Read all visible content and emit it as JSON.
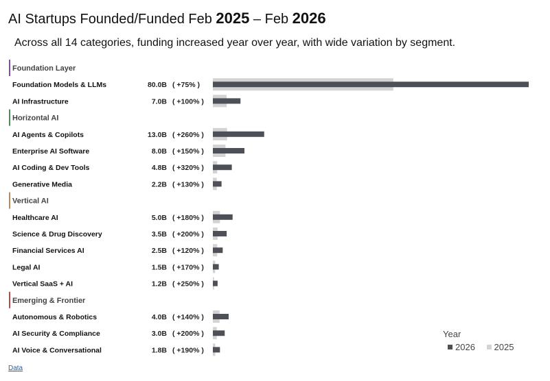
{
  "title_prefix": "AI Startups Founded/Funded Feb ",
  "title_year1": "2025",
  "title_mid": " – Feb ",
  "title_year2": "2026",
  "subtitle": "Across all 14 categories, funding increased year over year, with wide variation by segment.",
  "legend": {
    "title": "Year",
    "items": [
      {
        "label": "2026",
        "color": "#4d5157"
      },
      {
        "label": "2025",
        "color": "#d3d3d3"
      }
    ]
  },
  "data_link": "Data",
  "colors": {
    "bar_2026": "#4d5157",
    "bar_2025": "#d3d3d3"
  },
  "chart_data": {
    "type": "bar",
    "orientation": "horizontal",
    "unit": "B",
    "xlim": [
      0,
      80
    ],
    "groups": [
      {
        "name": "Foundation Layer",
        "color": "#7b4fa6",
        "categories": [
          {
            "name": "Foundation Models & LLMs",
            "value_2026": 80.0,
            "value_2025": 45.7,
            "value_label": "80.0B",
            "change_label": "( +75% )"
          },
          {
            "name": "AI Infrastructure",
            "value_2026": 7.0,
            "value_2025": 3.5,
            "value_label": "7.0B",
            "change_label": "( +100% )"
          }
        ]
      },
      {
        "name": "Horizontal AI",
        "color": "#4a8a5c",
        "categories": [
          {
            "name": "AI Agents & Copilots",
            "value_2026": 13.0,
            "value_2025": 3.6,
            "value_label": "13.0B",
            "change_label": "( +260% )"
          },
          {
            "name": "Enterprise AI Software",
            "value_2026": 8.0,
            "value_2025": 3.2,
            "value_label": "8.0B",
            "change_label": "( +150% )"
          },
          {
            "name": "AI Coding & Dev Tools",
            "value_2026": 4.8,
            "value_2025": 1.1,
            "value_label": "4.8B",
            "change_label": "( +320% )"
          },
          {
            "name": "Generative Media",
            "value_2026": 2.2,
            "value_2025": 1.0,
            "value_label": "2.2B",
            "change_label": "( +130% )"
          }
        ]
      },
      {
        "name": "Vertical AI",
        "color": "#b8875a",
        "categories": [
          {
            "name": "Healthcare AI",
            "value_2026": 5.0,
            "value_2025": 1.8,
            "value_label": "5.0B",
            "change_label": "( +180% )"
          },
          {
            "name": "Science & Drug Discovery",
            "value_2026": 3.5,
            "value_2025": 1.2,
            "value_label": "3.5B",
            "change_label": "( +200% )"
          },
          {
            "name": "Financial Services AI",
            "value_2026": 2.5,
            "value_2025": 1.1,
            "value_label": "2.5B",
            "change_label": "( +120% )"
          },
          {
            "name": "Legal AI",
            "value_2026": 1.5,
            "value_2025": 0.6,
            "value_label": "1.5B",
            "change_label": "( +170% )"
          },
          {
            "name": "Vertical SaaS + AI",
            "value_2026": 1.2,
            "value_2025": 0.3,
            "value_label": "1.2B",
            "change_label": "( +250% )"
          }
        ]
      },
      {
        "name": "Emerging & Frontier",
        "color": "#b44a45",
        "categories": [
          {
            "name": "Autonomous & Robotics",
            "value_2026": 4.0,
            "value_2025": 1.7,
            "value_label": "4.0B",
            "change_label": "( +140% )"
          },
          {
            "name": "AI Security & Compliance",
            "value_2026": 3.0,
            "value_2025": 1.0,
            "value_label": "3.0B",
            "change_label": "( +200% )"
          },
          {
            "name": "AI Voice & Conversational",
            "value_2026": 1.8,
            "value_2025": 0.6,
            "value_label": "1.8B",
            "change_label": "( +190% )"
          }
        ]
      }
    ]
  }
}
